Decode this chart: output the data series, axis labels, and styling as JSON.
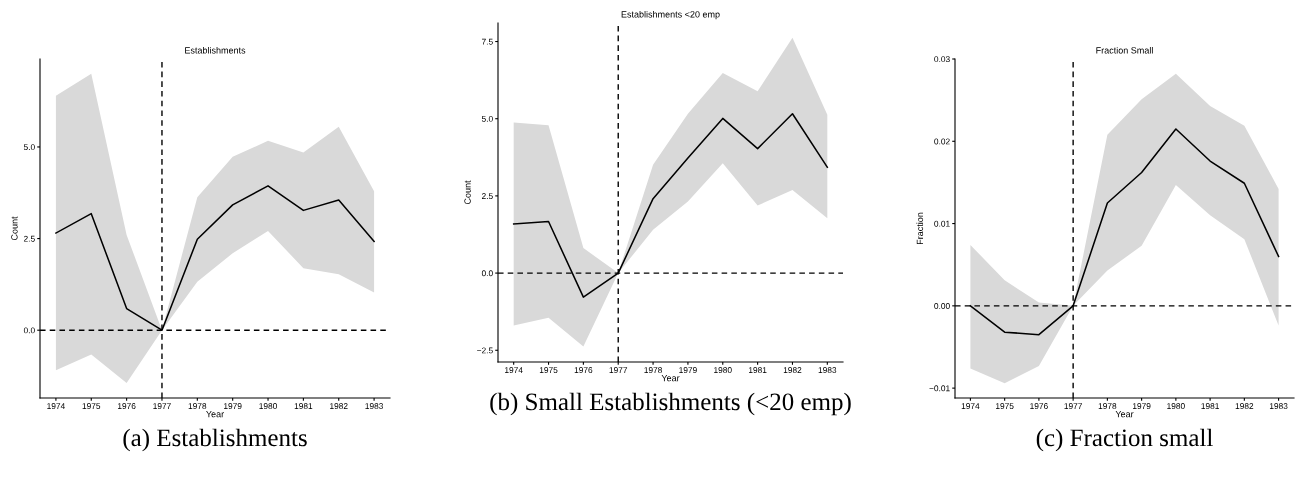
{
  "chart_data": [
    {
      "type": "line",
      "title": "Establishments",
      "xlabel": "Year",
      "ylabel": "Count",
      "x": [
        1974,
        1975,
        1976,
        1977,
        1978,
        1979,
        1980,
        1981,
        1982,
        1983
      ],
      "series": [
        {
          "color": "#000000",
          "values": [
            2.65,
            3.18,
            0.59,
            0,
            2.48,
            3.42,
            3.94,
            3.27,
            3.55,
            2.42
          ],
          "lower": [
            -1.09,
            -0.66,
            -1.44,
            0,
            1.32,
            2.1,
            2.71,
            1.69,
            1.53,
            1.03
          ],
          "upper": [
            6.4,
            7.0,
            2.6,
            0,
            3.63,
            4.73,
            5.17,
            4.85,
            5.55,
            3.79
          ]
        }
      ],
      "xlim": [
        1973.55,
        1983.45
      ],
      "xticks": [
        1974,
        1975,
        1976,
        1977,
        1978,
        1979,
        1980,
        1981,
        1982,
        1983
      ],
      "ylim": [
        -1.85,
        7.4
      ],
      "yticks": [
        {
          "value": 0,
          "label": "0.0"
        },
        {
          "value": 2.5,
          "label": "2.5"
        },
        {
          "value": 5,
          "label": "5.0"
        }
      ],
      "ref_lines": [
        {
          "axis": "x",
          "value": 1977,
          "line_style": "dashed",
          "color": "#000000"
        },
        {
          "axis": "y",
          "value": 0,
          "line_style": "dashed",
          "color": "#000000"
        }
      ],
      "grid": false,
      "line_style": "solid",
      "marker": "none",
      "annotations": [
        "(a) Establishments"
      ]
    },
    {
      "type": "line",
      "title": "Establishments <20 emp",
      "xlabel": "Year",
      "ylabel": "Count",
      "x": [
        1974,
        1975,
        1976,
        1977,
        1978,
        1979,
        1980,
        1981,
        1982,
        1983
      ],
      "series": [
        {
          "color": "#000000",
          "values": [
            1.59,
            1.67,
            -0.78,
            0,
            2.41,
            3.73,
            5.01,
            4.03,
            5.16,
            3.43
          ],
          "lower": [
            -1.7,
            -1.45,
            -2.38,
            0,
            1.4,
            2.32,
            3.56,
            2.19,
            2.69,
            1.78
          ],
          "upper": [
            4.88,
            4.79,
            0.81,
            0,
            3.51,
            5.16,
            6.48,
            5.89,
            7.62,
            5.13
          ]
        }
      ],
      "xlim": [
        1973.55,
        1983.45
      ],
      "xticks": [
        1974,
        1975,
        1976,
        1977,
        1978,
        1979,
        1980,
        1981,
        1982,
        1983
      ],
      "ylim": [
        -2.88,
        8.1
      ],
      "yticks": [
        {
          "value": -2.5,
          "label": "−2.5"
        },
        {
          "value": 0,
          "label": "0.0"
        },
        {
          "value": 2.5,
          "label": "2.5"
        },
        {
          "value": 5,
          "label": "5.0"
        },
        {
          "value": 7.5,
          "label": "7.5"
        }
      ],
      "ref_lines": [
        {
          "axis": "x",
          "value": 1977,
          "line_style": "dashed",
          "color": "#000000"
        },
        {
          "axis": "y",
          "value": 0,
          "line_style": "dashed",
          "color": "#000000"
        }
      ],
      "grid": false,
      "line_style": "solid",
      "marker": "none",
      "annotations": [
        "(b) Small Establishments (<20 emp)"
      ]
    },
    {
      "type": "line",
      "title": "Fraction Small",
      "xlabel": "Year",
      "ylabel": "Fraction",
      "x": [
        1974,
        1975,
        1976,
        1977,
        1978,
        1979,
        1980,
        1981,
        1982,
        1983
      ],
      "series": [
        {
          "color": "#000000",
          "values": [
            0,
            -0.0032,
            -0.0035,
            0,
            0.0125,
            0.0162,
            0.0215,
            0.0176,
            0.0149,
            0.006
          ],
          "lower": [
            -0.0076,
            -0.0094,
            -0.0073,
            0,
            0.0043,
            0.0073,
            0.0147,
            0.011,
            0.0081,
            -0.0024
          ],
          "upper": [
            0.0074,
            0.0031,
            0.0004,
            0,
            0.0208,
            0.0251,
            0.0282,
            0.0243,
            0.0219,
            0.0142
          ]
        }
      ],
      "xlim": [
        1973.55,
        1983.45
      ],
      "xticks": [
        1974,
        1975,
        1976,
        1977,
        1978,
        1979,
        1980,
        1981,
        1982,
        1983
      ],
      "ylim": [
        -0.0112,
        0.03
      ],
      "yticks": [
        {
          "value": -0.01,
          "label": "−0.01"
        },
        {
          "value": 0,
          "label": "0.00"
        },
        {
          "value": 0.01,
          "label": "0.01"
        },
        {
          "value": 0.02,
          "label": "0.02"
        },
        {
          "value": 0.03,
          "label": "0.03"
        }
      ],
      "ref_lines": [
        {
          "axis": "x",
          "value": 1977,
          "line_style": "dashed",
          "color": "#000000"
        },
        {
          "axis": "y",
          "value": 0,
          "line_style": "dashed",
          "color": "#000000"
        }
      ],
      "grid": false,
      "line_style": "solid",
      "marker": "none",
      "annotations": [
        "(c) Fraction small"
      ]
    }
  ]
}
